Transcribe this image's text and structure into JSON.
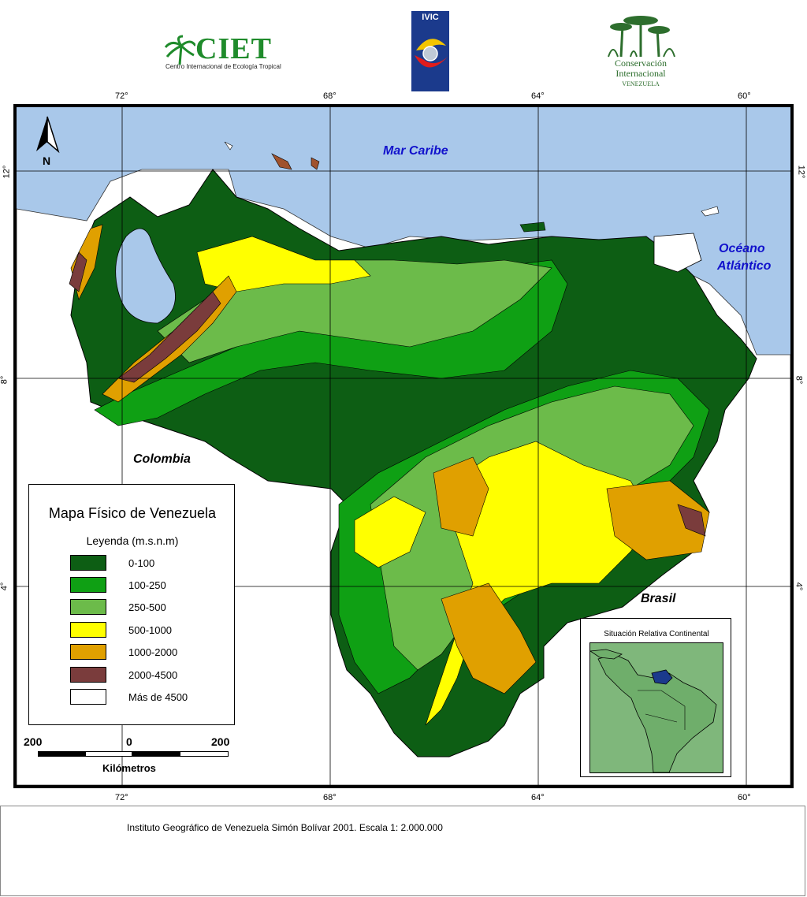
{
  "logos": {
    "ciet_main": "CIET",
    "ciet_sub": "Centro Internacional de Ecología Tropical",
    "ivic_label": "IVIC",
    "ci_line1": "Conservación",
    "ci_line2": "Internacional",
    "ci_line3": "VENEZUELA"
  },
  "map": {
    "longitude_labels": [
      "72°",
      "68°",
      "64°",
      "60°"
    ],
    "latitude_labels": [
      "12°",
      "8°",
      "4°"
    ],
    "sea_caribbean": "Mar Caribe",
    "ocean_atlantic_1": "Océano",
    "ocean_atlantic_2": "Atlántico",
    "country_colombia": "Colombia",
    "country_brasil": "Brasil",
    "north_label": "N"
  },
  "legend": {
    "title": "Mapa Físico de Venezuela",
    "subtitle": "Leyenda (m.s.n.m)",
    "items": [
      {
        "label": "0-100",
        "color": "#0d5e14"
      },
      {
        "label": "100-250",
        "color": "#0fa014"
      },
      {
        "label": "250-500",
        "color": "#6cbb4a"
      },
      {
        "label": "500-1000",
        "color": "#ffff00"
      },
      {
        "label": "1000-2000",
        "color": "#e0a000"
      },
      {
        "label": "2000-4500",
        "color": "#7a3c3c"
      },
      {
        "label": "Más de 4500",
        "color": "#ffffff"
      }
    ]
  },
  "scale": {
    "left": "200",
    "mid": "0",
    "right": "200",
    "unit": "Kilómetros"
  },
  "inset": {
    "title": "Situación Relativa Continental"
  },
  "footer": {
    "text": "Instituto Geográfico de Venezuela Simón Bolívar    2001. Escala 1: 2.000.000"
  },
  "colors": {
    "sea": "#a9c8ea",
    "frame": "#000000"
  }
}
